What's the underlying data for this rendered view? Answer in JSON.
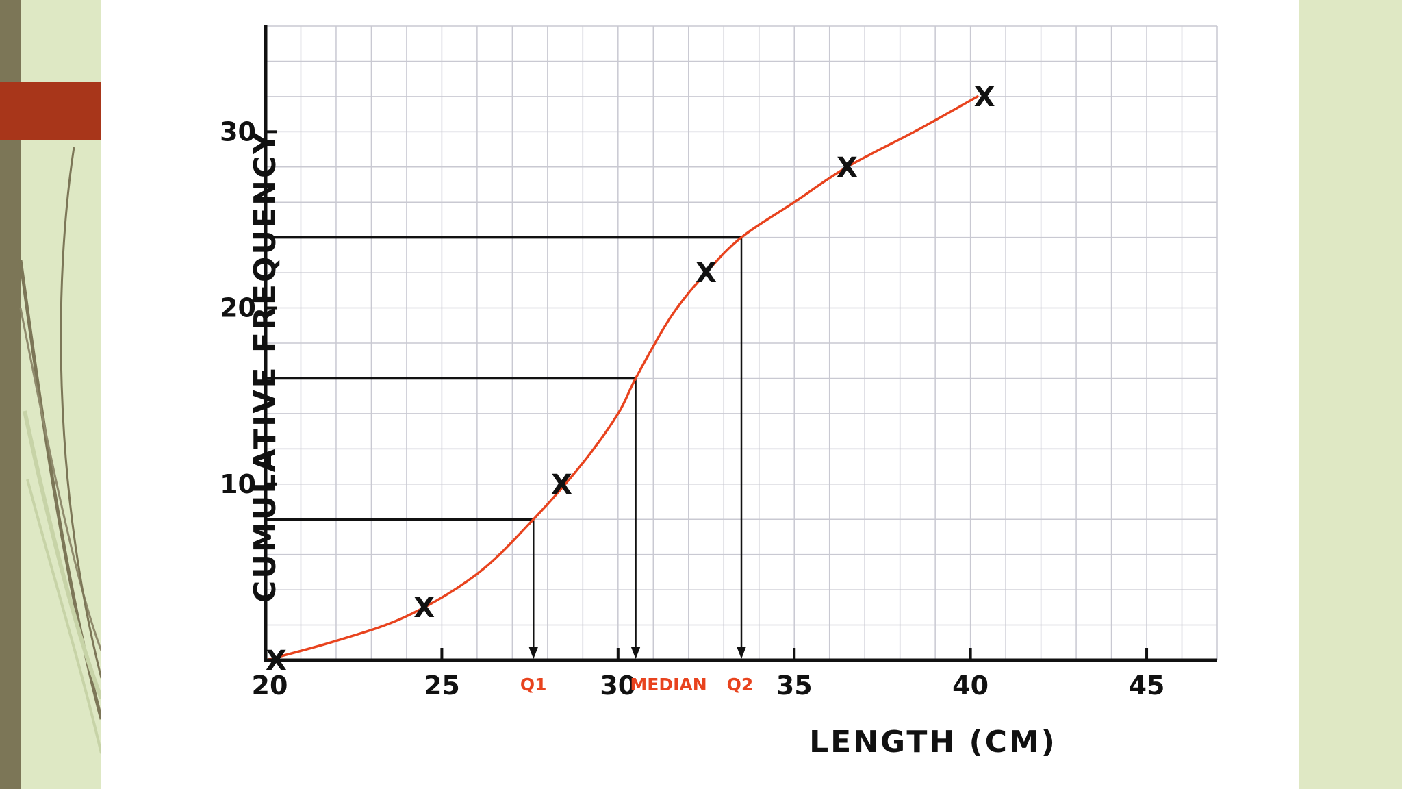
{
  "chart_data": {
    "type": "line",
    "xlabel": "LENGTH (CM)",
    "ylabel": "CUMULATIVE FREQUENCY",
    "xlim": [
      20,
      47
    ],
    "ylim": [
      0,
      36
    ],
    "x_ticks": [
      "20",
      "25",
      "30",
      "35",
      "40",
      "45"
    ],
    "x_tick_values": [
      20,
      25,
      30,
      35,
      40,
      45
    ],
    "y_ticks": [
      "10",
      "20",
      "30"
    ],
    "y_tick_values": [
      10,
      20,
      30
    ],
    "grid": true,
    "points": [
      {
        "x": 20.3,
        "y": 0
      },
      {
        "x": 24.5,
        "y": 3
      },
      {
        "x": 28.4,
        "y": 10
      },
      {
        "x": 32.5,
        "y": 22
      },
      {
        "x": 36.5,
        "y": 28
      },
      {
        "x": 40.4,
        "y": 32
      }
    ],
    "point_marker": "X",
    "curve_points": [
      [
        20,
        0
      ],
      [
        22,
        1.1
      ],
      [
        24,
        2.5
      ],
      [
        26,
        4.9
      ],
      [
        27.6,
        8
      ],
      [
        29,
        11.2
      ],
      [
        30,
        14
      ],
      [
        30.5,
        16
      ],
      [
        31.5,
        19.5
      ],
      [
        32.5,
        22
      ],
      [
        33.5,
        24
      ],
      [
        35,
        26
      ],
      [
        36.5,
        28
      ],
      [
        38.5,
        30.1
      ],
      [
        40.2,
        32
      ]
    ],
    "curve_color": "#e8431e",
    "markers": [
      {
        "label": "Q1",
        "x": 27.6,
        "y": 8
      },
      {
        "label": "MEDIAN",
        "x": 30.5,
        "y": 16
      },
      {
        "label": "Q2",
        "x": 33.5,
        "y": 24
      }
    ],
    "marker_color": "#e8431e"
  }
}
